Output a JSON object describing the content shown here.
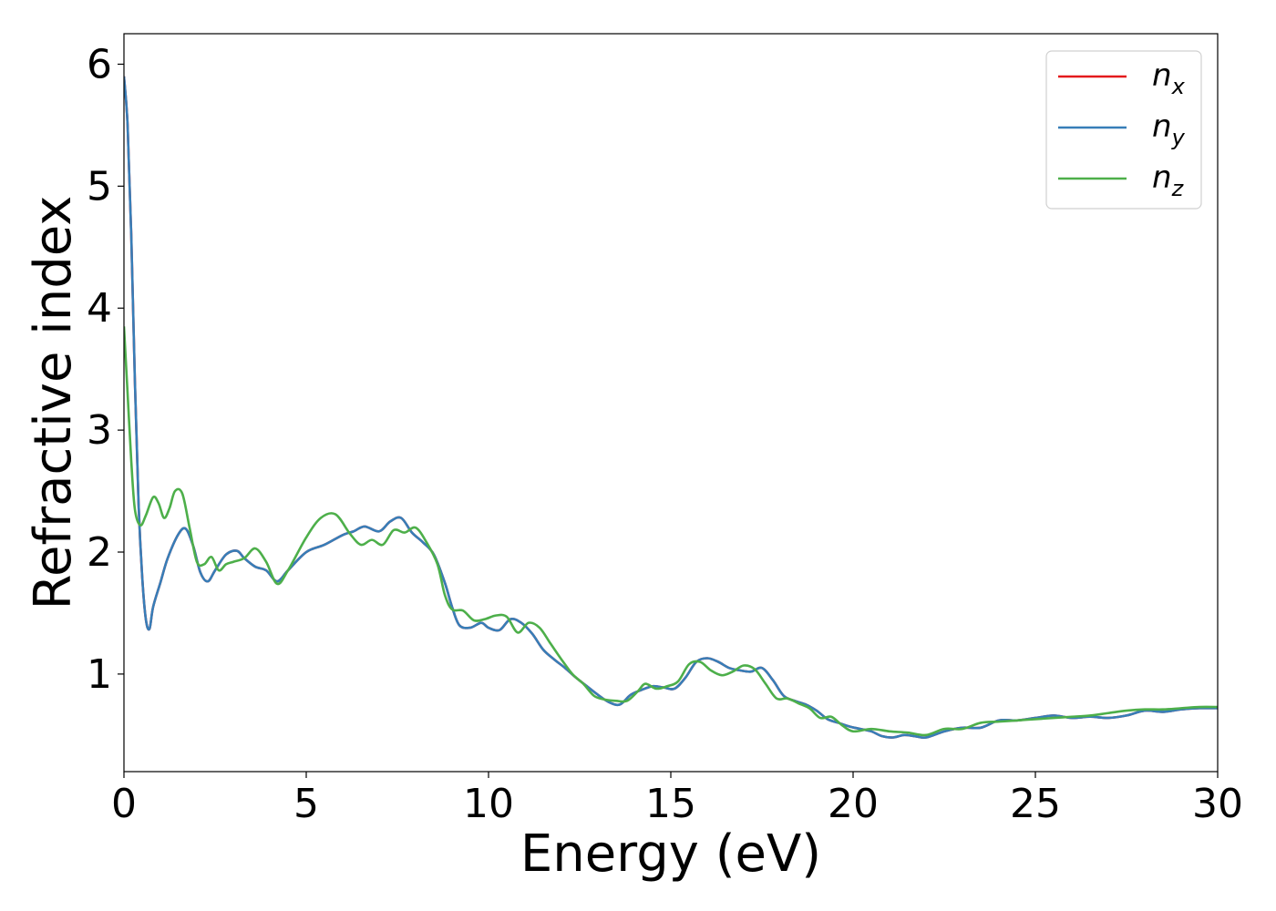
{
  "chart_data": {
    "type": "line",
    "title": "",
    "xlabel": "Energy (eV)",
    "ylabel": "Refractive index",
    "xlim": [
      0,
      30
    ],
    "ylim": [
      0.2,
      6.25
    ],
    "xticks": [
      0,
      5,
      10,
      15,
      20,
      25,
      30
    ],
    "yticks": [
      1,
      2,
      3,
      4,
      5,
      6
    ],
    "grid": false,
    "legend_position": "top-right",
    "series": [
      {
        "name": "n",
        "subscript": "x",
        "color": "#e41a1c",
        "x": [
          0,
          0.1,
          0.2,
          0.3,
          0.4,
          0.5,
          0.6,
          0.7,
          0.8,
          1.0,
          1.2,
          1.5,
          1.7,
          1.9,
          2.1,
          2.3,
          2.5,
          2.8,
          3.1,
          3.3,
          3.6,
          3.9,
          4.2,
          4.5,
          5.0,
          5.5,
          6.0,
          6.3,
          6.6,
          7.0,
          7.3,
          7.6,
          7.9,
          8.2,
          8.5,
          8.8,
          9.0,
          9.2,
          9.5,
          9.8,
          10.0,
          10.3,
          10.6,
          10.9,
          11.2,
          11.5,
          11.8,
          12.1,
          12.4,
          12.7,
          13.0,
          13.3,
          13.6,
          13.9,
          14.2,
          14.5,
          14.8,
          15.1,
          15.4,
          15.7,
          16.0,
          16.3,
          16.6,
          16.9,
          17.2,
          17.5,
          17.8,
          18.1,
          18.4,
          18.7,
          19.0,
          19.3,
          19.6,
          19.9,
          20.2,
          20.5,
          20.8,
          21.1,
          21.4,
          21.7,
          22.0,
          22.5,
          23.0,
          23.5,
          24.0,
          24.5,
          25.0,
          25.5,
          26.0,
          26.5,
          27.0,
          27.5,
          28.0,
          28.5,
          29.0,
          29.5,
          30.0
        ],
        "y": [
          5.9,
          5.5,
          4.6,
          3.4,
          2.4,
          1.8,
          1.45,
          1.37,
          1.55,
          1.75,
          1.95,
          2.15,
          2.19,
          2.05,
          1.83,
          1.76,
          1.85,
          1.98,
          2.01,
          1.95,
          1.88,
          1.85,
          1.76,
          1.85,
          2.0,
          2.06,
          2.14,
          2.17,
          2.21,
          2.17,
          2.25,
          2.28,
          2.16,
          2.08,
          1.98,
          1.75,
          1.55,
          1.4,
          1.38,
          1.42,
          1.38,
          1.36,
          1.45,
          1.42,
          1.33,
          1.2,
          1.12,
          1.05,
          0.97,
          0.9,
          0.83,
          0.77,
          0.75,
          0.83,
          0.87,
          0.9,
          0.89,
          0.88,
          0.97,
          1.1,
          1.13,
          1.1,
          1.05,
          1.03,
          1.02,
          1.05,
          0.95,
          0.82,
          0.78,
          0.75,
          0.7,
          0.63,
          0.6,
          0.57,
          0.55,
          0.53,
          0.49,
          0.48,
          0.5,
          0.49,
          0.48,
          0.53,
          0.56,
          0.56,
          0.62,
          0.62,
          0.64,
          0.66,
          0.64,
          0.65,
          0.64,
          0.66,
          0.7,
          0.69,
          0.71,
          0.72,
          0.72
        ]
      },
      {
        "name": "n",
        "subscript": "y",
        "color": "#377eb8",
        "x": [
          0,
          0.1,
          0.2,
          0.3,
          0.4,
          0.5,
          0.6,
          0.7,
          0.8,
          1.0,
          1.2,
          1.5,
          1.7,
          1.9,
          2.1,
          2.3,
          2.5,
          2.8,
          3.1,
          3.3,
          3.6,
          3.9,
          4.2,
          4.5,
          5.0,
          5.5,
          6.0,
          6.3,
          6.6,
          7.0,
          7.3,
          7.6,
          7.9,
          8.2,
          8.5,
          8.8,
          9.0,
          9.2,
          9.5,
          9.8,
          10.0,
          10.3,
          10.6,
          10.9,
          11.2,
          11.5,
          11.8,
          12.1,
          12.4,
          12.7,
          13.0,
          13.3,
          13.6,
          13.9,
          14.2,
          14.5,
          14.8,
          15.1,
          15.4,
          15.7,
          16.0,
          16.3,
          16.6,
          16.9,
          17.2,
          17.5,
          17.8,
          18.1,
          18.4,
          18.7,
          19.0,
          19.3,
          19.6,
          19.9,
          20.2,
          20.5,
          20.8,
          21.1,
          21.4,
          21.7,
          22.0,
          22.5,
          23.0,
          23.5,
          24.0,
          24.5,
          25.0,
          25.5,
          26.0,
          26.5,
          27.0,
          27.5,
          28.0,
          28.5,
          29.0,
          29.5,
          30.0
        ],
        "y": [
          5.9,
          5.5,
          4.6,
          3.4,
          2.4,
          1.8,
          1.45,
          1.37,
          1.55,
          1.75,
          1.95,
          2.15,
          2.19,
          2.05,
          1.83,
          1.76,
          1.85,
          1.98,
          2.01,
          1.95,
          1.88,
          1.85,
          1.76,
          1.85,
          2.0,
          2.06,
          2.14,
          2.17,
          2.21,
          2.17,
          2.25,
          2.28,
          2.16,
          2.08,
          1.98,
          1.75,
          1.55,
          1.4,
          1.38,
          1.42,
          1.38,
          1.36,
          1.45,
          1.42,
          1.33,
          1.2,
          1.12,
          1.05,
          0.97,
          0.9,
          0.83,
          0.77,
          0.75,
          0.83,
          0.87,
          0.9,
          0.89,
          0.88,
          0.97,
          1.1,
          1.13,
          1.1,
          1.05,
          1.03,
          1.02,
          1.05,
          0.95,
          0.82,
          0.78,
          0.75,
          0.7,
          0.63,
          0.6,
          0.57,
          0.55,
          0.53,
          0.49,
          0.48,
          0.5,
          0.49,
          0.48,
          0.53,
          0.56,
          0.56,
          0.62,
          0.62,
          0.64,
          0.66,
          0.64,
          0.65,
          0.64,
          0.66,
          0.7,
          0.69,
          0.71,
          0.72,
          0.72
        ]
      },
      {
        "name": "n",
        "subscript": "z",
        "color": "#4daf4a",
        "x": [
          0,
          0.1,
          0.2,
          0.3,
          0.45,
          0.6,
          0.8,
          0.95,
          1.1,
          1.25,
          1.4,
          1.6,
          1.8,
          2.0,
          2.2,
          2.4,
          2.6,
          2.8,
          3.0,
          3.3,
          3.6,
          3.9,
          4.2,
          4.5,
          5.0,
          5.4,
          5.8,
          6.2,
          6.5,
          6.8,
          7.1,
          7.4,
          7.7,
          8.0,
          8.3,
          8.6,
          8.8,
          9.0,
          9.3,
          9.6,
          9.9,
          10.2,
          10.5,
          10.8,
          11.1,
          11.4,
          11.7,
          12.0,
          12.3,
          12.6,
          12.9,
          13.2,
          13.5,
          13.8,
          14.1,
          14.3,
          14.6,
          14.9,
          15.2,
          15.5,
          15.8,
          16.1,
          16.4,
          16.7,
          17.0,
          17.3,
          17.6,
          17.9,
          18.2,
          18.5,
          18.8,
          19.1,
          19.4,
          19.7,
          20.0,
          20.5,
          21.0,
          21.5,
          22.0,
          22.5,
          23.0,
          23.5,
          24.0,
          24.5,
          25.0,
          25.5,
          26.0,
          26.5,
          27.0,
          27.5,
          28.0,
          28.5,
          29.0,
          29.5,
          30.0
        ],
        "y": [
          3.85,
          3.3,
          2.75,
          2.35,
          2.22,
          2.3,
          2.45,
          2.4,
          2.28,
          2.36,
          2.5,
          2.48,
          2.2,
          1.92,
          1.9,
          1.96,
          1.85,
          1.9,
          1.92,
          1.95,
          2.03,
          1.92,
          1.74,
          1.85,
          2.12,
          2.28,
          2.31,
          2.15,
          2.06,
          2.1,
          2.06,
          2.18,
          2.16,
          2.2,
          2.08,
          1.9,
          1.65,
          1.53,
          1.52,
          1.44,
          1.45,
          1.48,
          1.47,
          1.34,
          1.42,
          1.38,
          1.25,
          1.12,
          1.0,
          0.92,
          0.82,
          0.79,
          0.78,
          0.78,
          0.86,
          0.92,
          0.88,
          0.9,
          0.94,
          1.08,
          1.1,
          1.03,
          0.99,
          1.02,
          1.07,
          1.04,
          0.92,
          0.8,
          0.8,
          0.76,
          0.72,
          0.64,
          0.65,
          0.58,
          0.53,
          0.55,
          0.53,
          0.52,
          0.5,
          0.55,
          0.55,
          0.6,
          0.61,
          0.62,
          0.63,
          0.64,
          0.65,
          0.66,
          0.68,
          0.7,
          0.71,
          0.71,
          0.72,
          0.73,
          0.73
        ]
      }
    ]
  }
}
